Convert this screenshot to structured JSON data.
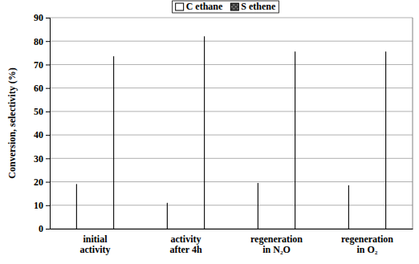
{
  "chart_data": {
    "type": "bar",
    "categories": [
      "initial activity",
      "activity after 4h",
      "regeneration in N₂O",
      "regeneration in O₂"
    ],
    "series": [
      {
        "name": "C ethane",
        "color": "#d0d0d0",
        "values": [
          19,
          11,
          19.5,
          18.5
        ]
      },
      {
        "name": "S ethene",
        "color": "#3c3c3c",
        "values": [
          73.5,
          82,
          75.5,
          75.5
        ]
      }
    ],
    "y_label": "Conversion, selectivity (%)",
    "ylim": [
      0,
      90
    ],
    "yticks": [
      0,
      10,
      20,
      30,
      40,
      50,
      60,
      70,
      80,
      90
    ],
    "grid": true,
    "legend": "top"
  }
}
